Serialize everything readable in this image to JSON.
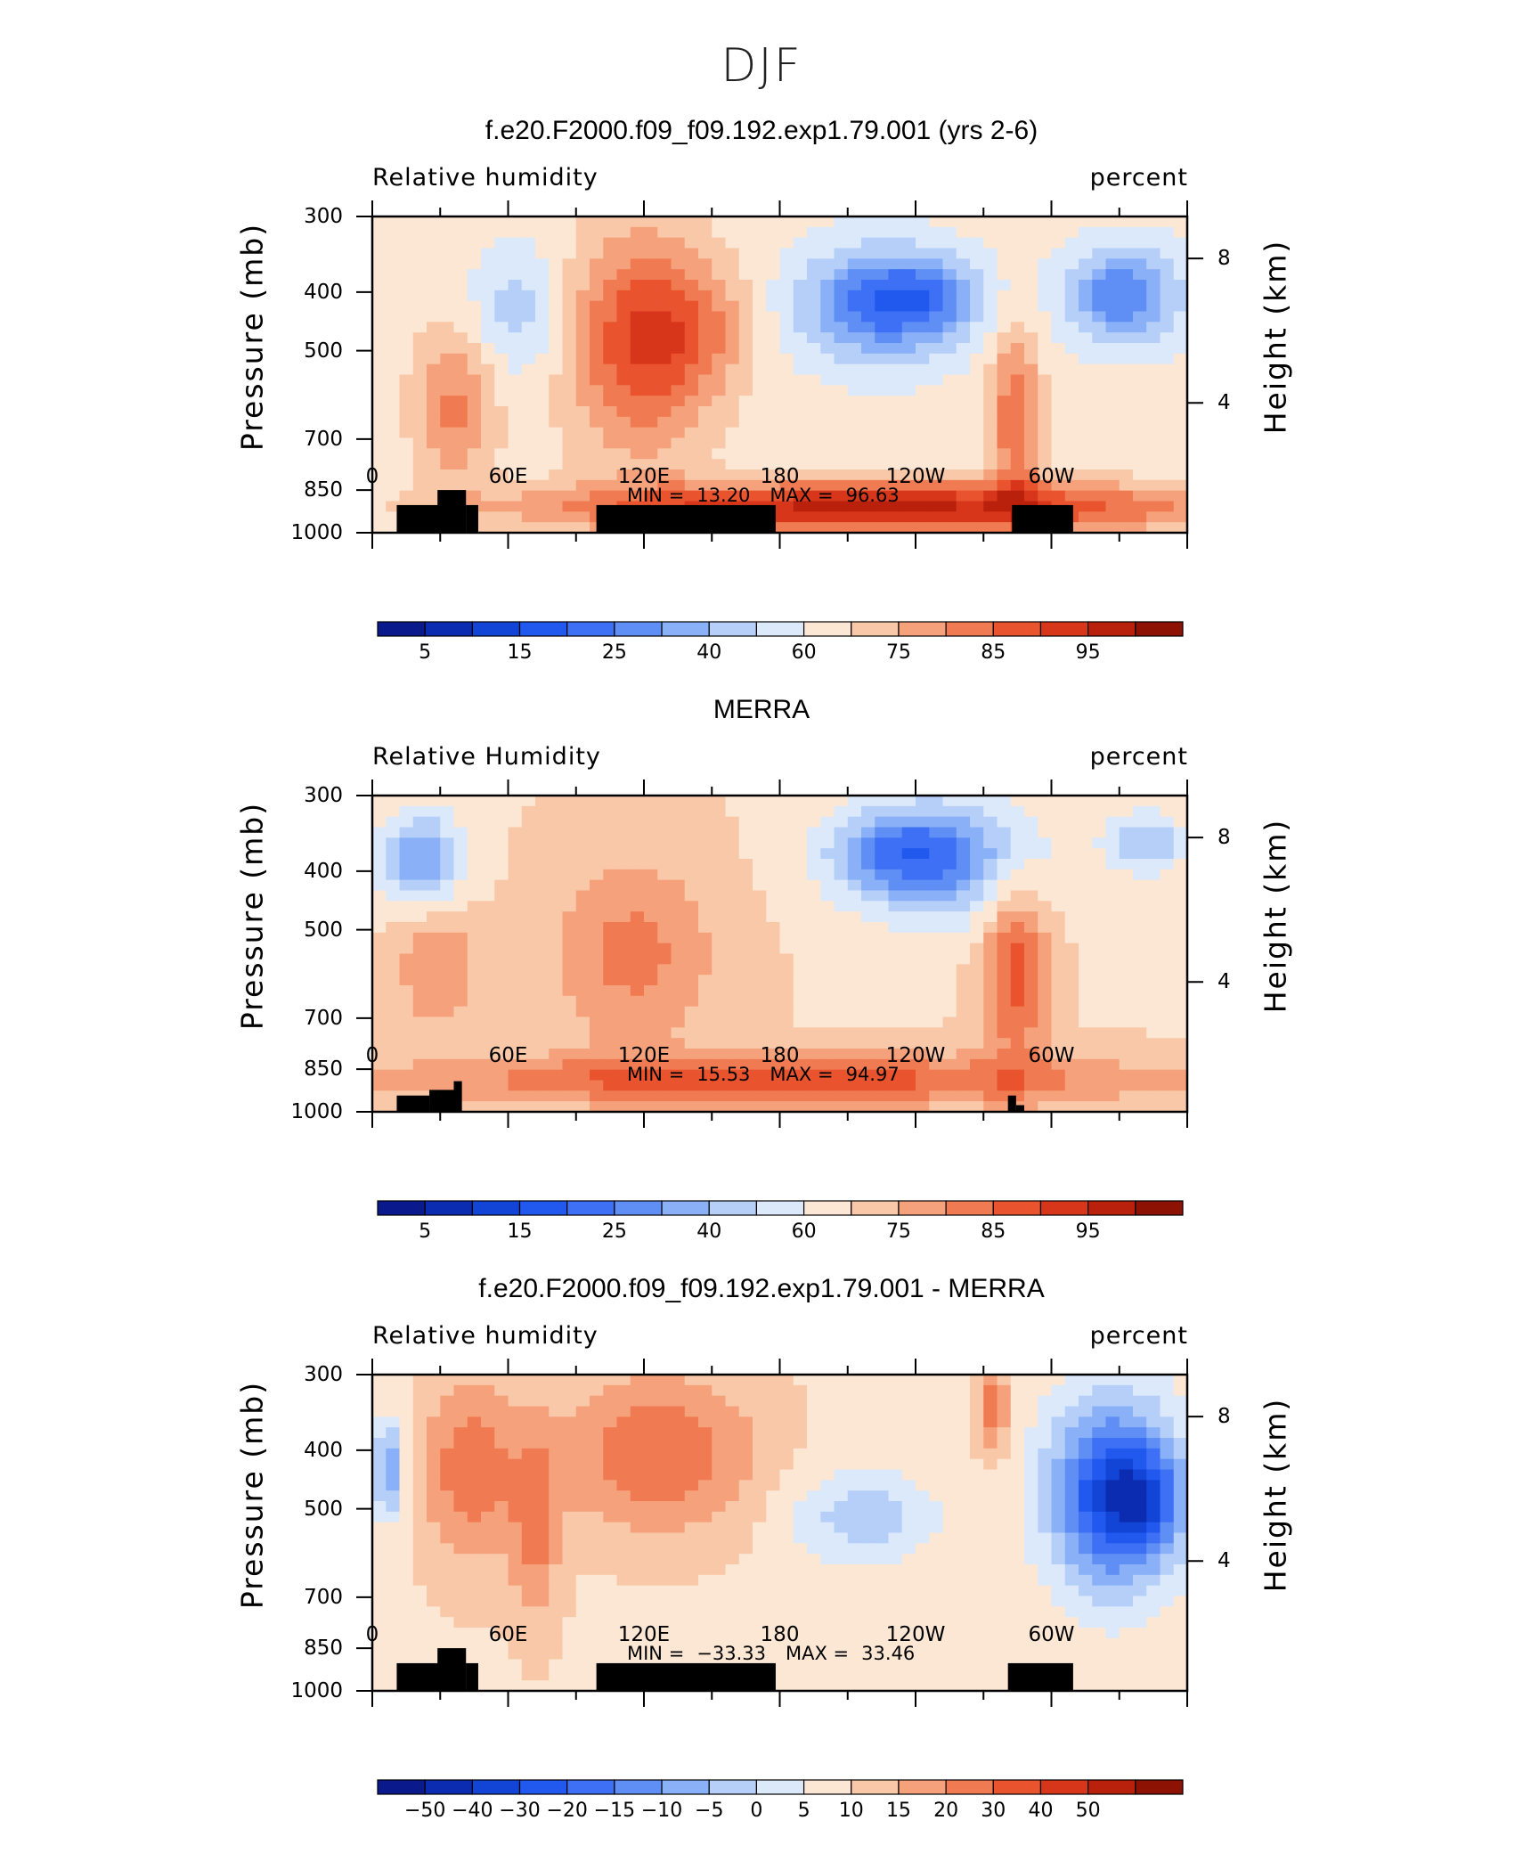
{
  "figure": {
    "title": "DJF"
  },
  "colorbars": {
    "rh": {
      "colors": [
        "#0a1a8c",
        "#0b2cb0",
        "#1244d6",
        "#2158ee",
        "#3d70f5",
        "#5f8ef5",
        "#8ab0f7",
        "#b6cff9",
        "#dce9fb",
        "#fbe7d4",
        "#f9c8a8",
        "#f5a27c",
        "#f07b52",
        "#e9532e",
        "#d8361a",
        "#b9210c",
        "#8e1204"
      ],
      "labels": [
        "5",
        "15",
        "25",
        "40",
        "60",
        "75",
        "85",
        "95"
      ]
    },
    "diff": {
      "colors": [
        "#0a1a8c",
        "#0b2cb0",
        "#1244d6",
        "#2158ee",
        "#3d70f5",
        "#5f8ef5",
        "#8ab0f7",
        "#b6cff9",
        "#dce9fb",
        "#fbe7d4",
        "#f9c8a8",
        "#f5a27c",
        "#f07b52",
        "#e9532e",
        "#d8361a",
        "#b9210c",
        "#8e1204"
      ],
      "labels": [
        "−50",
        "−40",
        "−30",
        "−20",
        "−15",
        "−10",
        "−5",
        "0",
        "5",
        "10",
        "15",
        "20",
        "30",
        "40",
        "50"
      ]
    }
  },
  "chart_data": [
    {
      "type": "heatmap",
      "title": "f.e20.F2000.f09_f09.192.exp1.79.001 (yrs 2-6)",
      "variable": "Relative humidity",
      "units": "percent",
      "ylabel": "Pressure (mb)",
      "ylabel_right": "Height (km)",
      "y_scale": "log",
      "ylim": [
        1000,
        300
      ],
      "yticks": [
        "300",
        "400",
        "500",
        "700",
        "850",
        "1000"
      ],
      "yticks_right": [
        "8",
        "4"
      ],
      "xticks": [
        "0",
        "60E",
        "120E",
        "180",
        "120W",
        "60W"
      ],
      "min_label": "MIN =",
      "min_value": "13.20",
      "max_label": "MAX =",
      "max_value": "96.63",
      "colorbar": "rh"
    },
    {
      "type": "heatmap",
      "title": "MERRA",
      "variable": "Relative Humidity",
      "units": "percent",
      "ylabel": "Pressure (mb)",
      "ylabel_right": "Height (km)",
      "y_scale": "log",
      "ylim": [
        1000,
        300
      ],
      "yticks": [
        "300",
        "400",
        "500",
        "700",
        "850",
        "1000"
      ],
      "yticks_right": [
        "8",
        "4"
      ],
      "xticks": [
        "0",
        "60E",
        "120E",
        "180",
        "120W",
        "60W"
      ],
      "min_label": "MIN =",
      "min_value": "15.53",
      "max_label": "MAX =",
      "max_value": "94.97",
      "colorbar": "rh"
    },
    {
      "type": "heatmap",
      "title": "f.e20.F2000.f09_f09.192.exp1.79.001 - MERRA",
      "variable": "Relative humidity",
      "units": "percent",
      "ylabel": "Pressure (mb)",
      "ylabel_right": "Height (km)",
      "y_scale": "log",
      "ylim": [
        1000,
        300
      ],
      "yticks": [
        "300",
        "400",
        "500",
        "700",
        "850",
        "1000"
      ],
      "yticks_right": [
        "8",
        "4"
      ],
      "xticks": [
        "0",
        "60E",
        "120E",
        "180",
        "120W",
        "60W"
      ],
      "min_label": "MIN =",
      "min_value": "−33.33",
      "max_label": "MAX =",
      "max_value": "33.46",
      "colorbar": "diff"
    }
  ]
}
